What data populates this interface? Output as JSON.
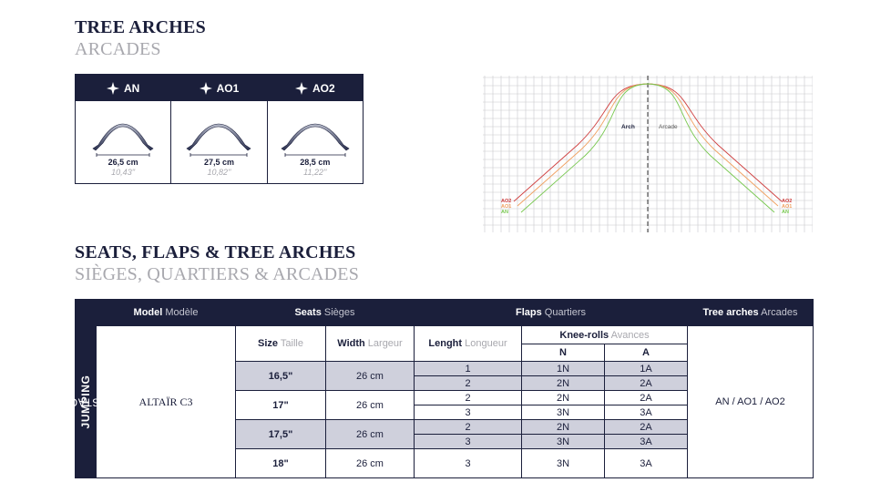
{
  "section1": {
    "title": "TREE ARCHES",
    "subtitle": "ARCADES"
  },
  "arches": [
    {
      "name": "AN",
      "cm": "26,5 cm",
      "inch": "10,43''"
    },
    {
      "name": "AO1",
      "cm": "27,5 cm",
      "inch": "10,82''"
    },
    {
      "name": "AO2",
      "cm": "28,5 cm",
      "inch": "11,22''"
    }
  ],
  "diagram": {
    "center_label": "Arch",
    "center_label_fr": "Arcade",
    "labels": [
      "AO2",
      "AO1",
      "AN"
    ],
    "colors": {
      "AN": "#78c850",
      "AO1": "#f0a060",
      "AO2": "#d04040"
    }
  },
  "section2": {
    "title": "SEATS, FLAPS & TREE ARCHES",
    "subtitle": "SIÈGES, QUARTIERS & ARCADES"
  },
  "table": {
    "side_label_bold": "JUMPING",
    "side_label_rest": " OBSTACLE",
    "headers": {
      "model": "Model",
      "model_fr": " Modèle",
      "seats": "Seats",
      "seats_fr": " Sièges",
      "flaps": "Flaps",
      "flaps_fr": " Quartiers",
      "arches": "Tree arches",
      "arches_fr": " Arcades"
    },
    "subheaders": {
      "size": "Size",
      "size_fr": " Taille",
      "width": "Width",
      "width_fr": " Largeur",
      "length": "Lenght",
      "length_fr": " Longueur",
      "knee": "Knee-rolls",
      "knee_fr": " Avances",
      "n": "N",
      "a": "A"
    },
    "model": "ALTAÏR C3",
    "arches_value": "AN / AO1 / AO2",
    "groups": [
      {
        "size": "16,5\"",
        "width": "26 cm",
        "rows": [
          {
            "len": "1",
            "n": "1N",
            "a": "1A"
          },
          {
            "len": "2",
            "n": "2N",
            "a": "2A"
          }
        ]
      },
      {
        "size": "17\"",
        "width": "26 cm",
        "rows": [
          {
            "len": "2",
            "n": "2N",
            "a": "2A"
          },
          {
            "len": "3",
            "n": "3N",
            "a": "3A"
          }
        ]
      },
      {
        "size": "17,5\"",
        "width": "26 cm",
        "rows": [
          {
            "len": "2",
            "n": "2N",
            "a": "2A"
          },
          {
            "len": "3",
            "n": "3N",
            "a": "3A"
          }
        ]
      },
      {
        "size": "18\"",
        "width": "26 cm",
        "rows": [
          {
            "len": "3",
            "n": "3N",
            "a": "3A"
          }
        ]
      }
    ]
  },
  "colors": {
    "navy": "#1b1f3b",
    "shade": "#cfd0dc",
    "grey_text": "#a8a8ae"
  }
}
